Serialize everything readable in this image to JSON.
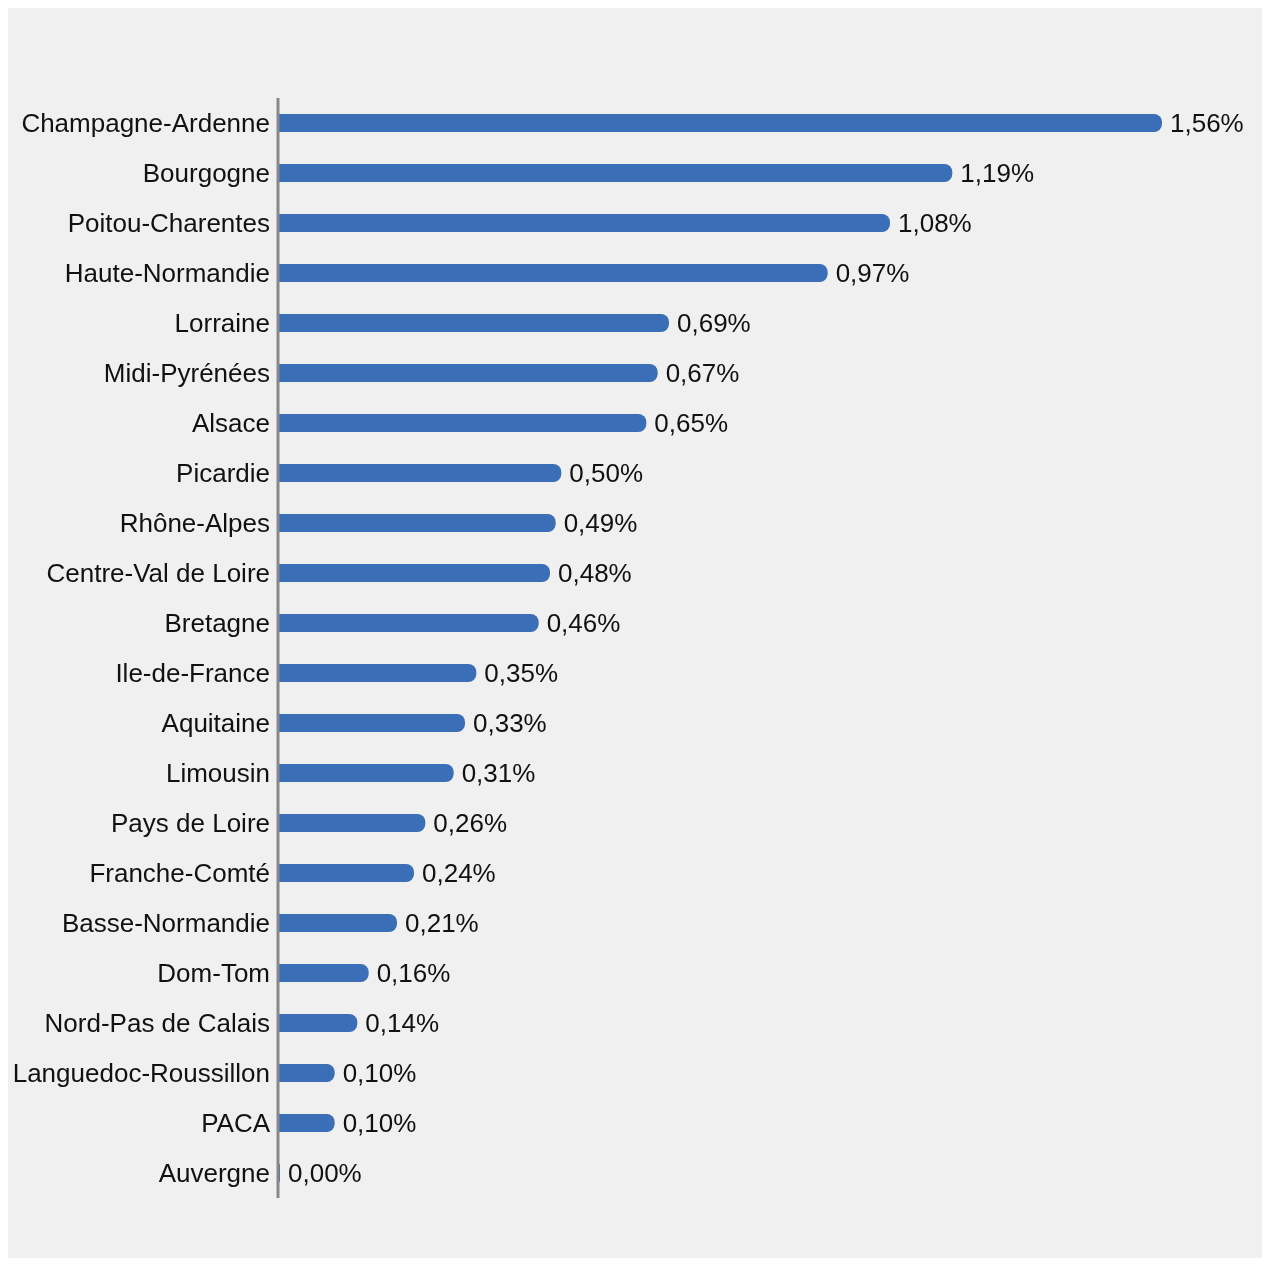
{
  "chart_data": {
    "type": "bar",
    "orientation": "horizontal",
    "categories": [
      "Champagne-Ardenne",
      "Bourgogne",
      "Poitou-Charentes",
      "Haute-Normandie",
      "Lorraine",
      "Midi-Pyrénées",
      "Alsace",
      "Picardie",
      "Rhône-Alpes",
      "Centre-Val de Loire",
      "Bretagne",
      "Ile-de-France",
      "Aquitaine",
      "Limousin",
      "Pays de Loire",
      "Franche-Comté",
      "Basse-Normandie",
      "Dom-Tom",
      "Nord-Pas de Calais",
      "Languedoc-Roussillon",
      "PACA",
      "Auvergne"
    ],
    "values": [
      1.56,
      1.19,
      1.08,
      0.97,
      0.69,
      0.67,
      0.65,
      0.5,
      0.49,
      0.48,
      0.46,
      0.35,
      0.33,
      0.31,
      0.26,
      0.24,
      0.21,
      0.16,
      0.14,
      0.1,
      0.1,
      0.0
    ],
    "value_labels": [
      "1,56%",
      "1,19%",
      "1,08%",
      "0,97%",
      "0,69%",
      "0,67%",
      "0,65%",
      "0,50%",
      "0,49%",
      "0,48%",
      "0,46%",
      "0,35%",
      "0,33%",
      "0,31%",
      "0,26%",
      "0,24%",
      "0,21%",
      "0,16%",
      "0,14%",
      "0,10%",
      "0,10%",
      "0,00%"
    ],
    "color": "#3a6fb8",
    "grid": false,
    "legend": false,
    "tick_labels": "y"
  }
}
